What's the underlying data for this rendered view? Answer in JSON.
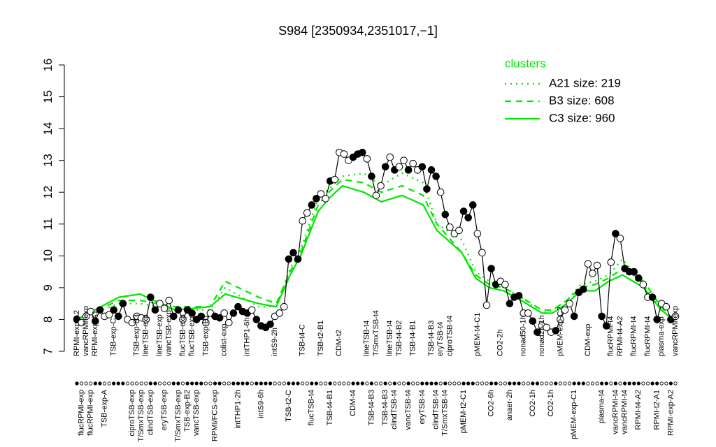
{
  "chart_data": {
    "type": "line",
    "title": "S984 [2350934,2351017,−1]",
    "ylim": [
      7,
      16
    ],
    "yticks": [
      7,
      8,
      9,
      10,
      11,
      12,
      13,
      14,
      15,
      16
    ],
    "color": "#000000",
    "categories": [
      "RPMI-exp-A2",
      "flucRPMI-exp",
      "vancRPMI-exp",
      "flucRPMI-exp",
      "RPMI-exp-A1",
      null,
      "TSB-exp-A",
      null,
      "TSB-exp-C",
      null,
      null,
      null,
      "ciproTSB-exp",
      "TSB-exp-B3",
      "T/SmxTSB-exp",
      "lineTSB-exp",
      "clindTSB-exp",
      null,
      "lineTSB-exp",
      "eryTSB-exp",
      "vancTSB-exp",
      null,
      "T/SmxTSB-exp",
      "flucTSB-exp",
      "TSB-exp-B2",
      "flucTSB-exp",
      "vancTSB-exp",
      null,
      "TSB-exp-B1",
      null,
      "RPMI/FCS-exp",
      null,
      "colist-exp",
      null,
      null,
      "intTHP1-2h",
      null,
      "intTHP1-6h",
      null,
      null,
      "intS9-6h",
      null,
      null,
      "intS9-2h",
      null,
      null,
      "TSB-t2-C",
      null,
      null,
      "TSB-t4-C",
      null,
      "flucTSB-t4",
      null,
      "TSB-t2-B1",
      null,
      "TSB-t4-B1",
      null,
      "CDM-t2",
      null,
      null,
      "CDM-t4",
      null,
      null,
      "lineTSB-t4",
      "TSB-t4-B3",
      "T/SmxTSB-t4",
      null,
      "TSB-t4-B3",
      "lineTSB-t4",
      "clindTSB-t4",
      "TSB-t4-B2",
      null,
      "vancTSB-t4",
      "TSB-t4-B1",
      null,
      "eryTSB-t4",
      null,
      "TSB-t4-B3",
      "clindTSB-t4",
      "eryTSB-t4",
      "T/SmxTSB-t4",
      "ciproTSB-t4",
      null,
      null,
      "pMEM-t2-C1",
      null,
      null,
      "pMEM-t4-C1",
      null,
      null,
      "CO2-6h",
      null,
      "CO2-2h",
      null,
      "anaer-2h",
      null,
      null,
      "nonad50-1h",
      null,
      "CO2-1h",
      null,
      "nonad25-1h",
      null,
      "CO2-1h",
      null,
      "pMEM-exp-C2",
      null,
      null,
      "pMEM-exp-C1",
      null,
      null,
      "CDM-exp",
      null,
      null,
      "plasma-t4",
      null,
      "flucRPMI-t4",
      "vancRPMI-t4",
      "RPMI-t4-A2",
      "vancRPMI-t4",
      null,
      "flucRPMI-t4",
      "RPMI-t4-A2",
      null,
      "flucRPMI-t4",
      null,
      "RPMI-t2-A1",
      "plasma-exp",
      null,
      "RPMI-exp-A2",
      "vancRPMI-exp"
    ],
    "values": [
      8.0,
      7.9,
      8.1,
      8.25,
      7.95,
      8.3,
      8.1,
      8.15,
      8.3,
      8.1,
      8.5,
      8.0,
      7.9,
      8.1,
      8.05,
      8.0,
      8.7,
      8.3,
      8.5,
      8.35,
      8.6,
      8.1,
      8.3,
      8.0,
      8.3,
      8.2,
      8.0,
      8.1,
      7.9,
      8.2,
      8.1,
      8.05,
      8.2,
      7.9,
      8.2,
      8.4,
      8.25,
      8.2,
      8.3,
      8.0,
      7.8,
      7.75,
      7.85,
      8.1,
      8.2,
      8.4,
      9.9,
      10.1,
      9.9,
      11.1,
      11.35,
      11.6,
      11.8,
      11.95,
      11.8,
      12.35,
      12.4,
      13.25,
      13.2,
      13.0,
      13.1,
      13.2,
      13.25,
      13.05,
      12.5,
      11.9,
      12.2,
      12.8,
      13.1,
      12.7,
      12.8,
      13.0,
      12.7,
      12.9,
      12.7,
      12.8,
      12.1,
      12.7,
      12.5,
      12.0,
      11.3,
      10.9,
      10.7,
      10.8,
      11.4,
      11.2,
      11.6,
      10.7,
      10.1,
      8.45,
      9.6,
      9.1,
      9.2,
      9.1,
      8.5,
      8.7,
      8.75,
      8.2,
      8.2,
      7.95,
      7.6,
      7.8,
      7.75,
      7.6,
      7.65,
      8.0,
      8.3,
      8.5,
      8.1,
      8.85,
      8.95,
      9.75,
      9.45,
      9.7,
      8.1,
      7.8,
      9.8,
      10.7,
      10.55,
      9.6,
      9.5,
      9.5,
      9.3,
      9.1,
      8.7,
      8.7,
      8.0,
      8.5,
      8.4,
      8.0,
      8.1
    ],
    "filled": [
      true,
      false,
      false,
      false,
      true,
      true,
      false,
      false,
      true,
      true,
      true,
      false,
      false,
      false,
      false,
      false,
      true,
      true,
      false,
      false,
      false,
      true,
      true,
      false,
      true,
      true,
      true,
      true,
      false,
      false,
      true,
      true,
      false,
      false,
      true,
      true,
      true,
      true,
      false,
      true,
      true,
      true,
      true,
      false,
      false,
      false,
      true,
      true,
      true,
      false,
      false,
      true,
      true,
      false,
      false,
      true,
      false,
      false,
      false,
      false,
      true,
      true,
      true,
      false,
      true,
      false,
      false,
      true,
      false,
      true,
      false,
      false,
      true,
      false,
      false,
      true,
      true,
      true,
      true,
      false,
      true,
      false,
      false,
      false,
      true,
      true,
      true,
      false,
      false,
      false,
      true,
      true,
      false,
      false,
      true,
      true,
      true,
      false,
      false,
      true,
      true,
      false,
      false,
      false,
      true,
      false,
      false,
      false,
      true,
      true,
      true,
      false,
      false,
      false,
      true,
      true,
      false,
      true,
      false,
      true,
      true,
      true,
      true,
      false,
      false,
      true,
      true,
      false,
      false,
      true,
      false
    ],
    "legend_title": "clusters",
    "cluster_series": [
      {
        "name": "A21 size: 219",
        "color": "#00e600",
        "linestyle": "dotted",
        "x": [
          0,
          9.1,
          13.7,
          21.3,
          28.9,
          32.2,
          39.5,
          43.3,
          46.3,
          48.6,
          52.4,
          54.7,
          57.7,
          62.3,
          66.1,
          70.6,
          75.2,
          78.2,
          83.6,
          86.6,
          89.6,
          92.7,
          96.5,
          101.0,
          103.3,
          106.4,
          109.4,
          112.5,
          115.5,
          118.5,
          123.1,
          126.9,
          129.5
        ],
        "values": [
          8.0,
          8.5,
          8.5,
          8.3,
          8.3,
          9.0,
          8.4,
          8.4,
          9.6,
          10.2,
          11.8,
          12.1,
          12.5,
          12.6,
          12.2,
          12.6,
          12.3,
          11.0,
          10.5,
          9.5,
          9.2,
          9.0,
          8.7,
          8.2,
          8.3,
          8.6,
          9.1,
          9.2,
          9.4,
          9.9,
          9.1,
          8.3,
          8.0
        ]
      },
      {
        "name": "B3 size: 608",
        "color": "#00e600",
        "linestyle": "dashed",
        "x": [
          0,
          9.1,
          13.7,
          21.3,
          28.9,
          32.2,
          39.5,
          43.3,
          46.3,
          48.6,
          52.4,
          54.7,
          57.7,
          62.3,
          66.1,
          70.6,
          75.2,
          78.2,
          83.6,
          86.6,
          89.6,
          92.7,
          96.5,
          101.0,
          103.3,
          106.4,
          109.4,
          112.5,
          115.5,
          118.5,
          123.1,
          126.9,
          129.5
        ],
        "values": [
          8.0,
          8.6,
          8.6,
          8.4,
          8.4,
          9.2,
          8.7,
          8.5,
          9.5,
          10.1,
          11.6,
          12.0,
          12.4,
          12.3,
          12.0,
          12.2,
          11.9,
          11.0,
          10.1,
          9.4,
          9.1,
          9.0,
          8.7,
          8.3,
          8.3,
          8.6,
          9.0,
          9.1,
          9.3,
          9.6,
          9.2,
          8.4,
          8.0
        ]
      },
      {
        "name": "C3 size: 960",
        "color": "#00e600",
        "linestyle": "solid",
        "x": [
          0,
          9.1,
          13.7,
          21.3,
          28.9,
          32.2,
          39.5,
          43.3,
          46.3,
          48.6,
          52.4,
          54.7,
          57.7,
          62.3,
          66.1,
          70.6,
          75.2,
          78.2,
          83.6,
          86.6,
          89.6,
          92.7,
          96.5,
          101.0,
          103.3,
          106.4,
          109.4,
          112.5,
          115.5,
          118.5,
          123.1,
          126.9,
          129.5
        ],
        "values": [
          8.0,
          8.7,
          8.8,
          8.3,
          8.4,
          8.8,
          8.5,
          8.4,
          9.4,
          10.0,
          11.4,
          11.8,
          12.2,
          12.0,
          11.7,
          11.9,
          11.6,
          10.8,
          10.1,
          9.3,
          9.0,
          8.9,
          8.6,
          8.2,
          8.2,
          8.5,
          8.9,
          8.9,
          9.2,
          9.4,
          9.0,
          8.3,
          8.0
        ]
      }
    ]
  }
}
